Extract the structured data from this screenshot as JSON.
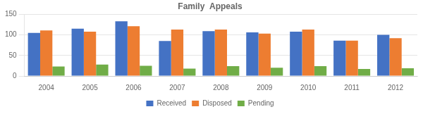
{
  "chart_data": {
    "type": "bar",
    "title": "Family  Appeals",
    "categories": [
      "2004",
      "2005",
      "2006",
      "2007",
      "2008",
      "2009",
      "2010",
      "2011",
      "2012"
    ],
    "series": [
      {
        "name": "Received",
        "color": "#4472C4",
        "values": [
          105,
          115,
          133,
          85,
          109,
          106,
          108,
          86,
          100
        ]
      },
      {
        "name": "Disposed",
        "color": "#ED7D31",
        "values": [
          111,
          108,
          121,
          113,
          113,
          103,
          113,
          86,
          92
        ]
      },
      {
        "name": "Pending",
        "color": "#70AD47",
        "values": [
          23,
          28,
          25,
          18,
          24,
          20,
          24,
          17,
          19
        ]
      }
    ],
    "ylim": [
      0,
      150
    ],
    "yticks": [
      0,
      50,
      100,
      150
    ],
    "grid": true,
    "legend": "bottom"
  }
}
